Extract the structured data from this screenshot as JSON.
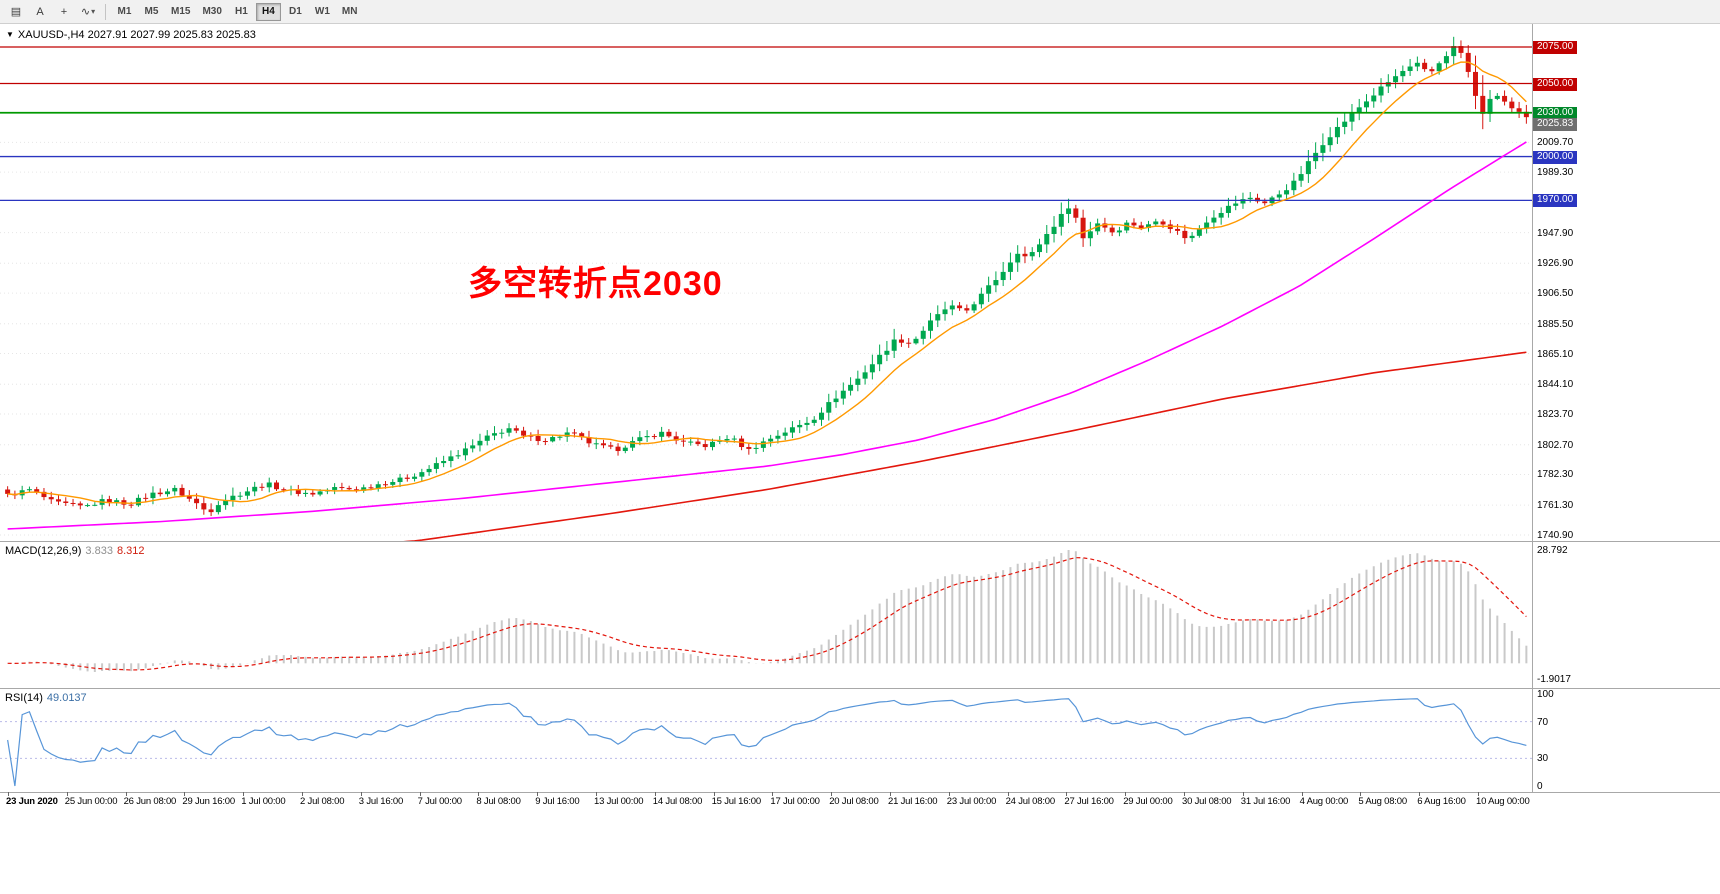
{
  "toolbar": {
    "tools": [
      {
        "name": "charts-list",
        "glyph": "▤",
        "caret": false
      },
      {
        "name": "text-label-tool",
        "glyph": "A",
        "caret": false
      },
      {
        "name": "crosshair-tool",
        "glyph": "+",
        "caret": false
      },
      {
        "name": "drawing-tool",
        "glyph": "∿",
        "caret": true
      }
    ],
    "timeframes": [
      "M1",
      "M5",
      "M15",
      "M30",
      "H1",
      "H4",
      "D1",
      "W1",
      "MN"
    ],
    "active_timeframe": "H4"
  },
  "quote_bar": {
    "dropdown_glyph": "▼",
    "text": "XAUUSD-,H4  2027.91 2027.99 2025.83 2025.83"
  },
  "annotation": {
    "text": "多空转折点2030",
    "color": "#ff0000"
  },
  "macd_label": {
    "name": "MACD(12,26,9)",
    "main": "3.833",
    "signal": "8.312"
  },
  "rsi_label": {
    "name": "RSI(14)",
    "value": "49.0137"
  },
  "chart_data": {
    "type": "candlestick",
    "symbol": "XAUUSD-",
    "timeframe": "H4",
    "title": "XAUUSD- H4 with MACD(12,26,9) and RSI(14)",
    "ohlc_readout": {
      "open": 2027.91,
      "high": 2027.99,
      "low": 2025.83,
      "close": 2025.83
    },
    "bars": 210,
    "up_color": "#00a84f",
    "down_color": "#d6150f",
    "y_axis": {
      "plain_labels": [
        "2009.70",
        "1989.30",
        "1947.90",
        "1926.90",
        "1906.50",
        "1885.50",
        "1865.10",
        "1844.10",
        "1823.70",
        "1802.70",
        "1782.30",
        "1761.30",
        "1740.90"
      ]
    },
    "price_tags": [
      {
        "price": 2075.0,
        "label": "2075.00",
        "bg": "#c00000"
      },
      {
        "price": 2050.0,
        "label": "2050.00",
        "bg": "#c00000"
      },
      {
        "price": 2030.0,
        "label": "2030.00",
        "bg": "#00882a"
      },
      {
        "price": 2025.83,
        "label": "2025.83",
        "bg": "#6f6f6f"
      },
      {
        "price": 2000.0,
        "label": "2000.00",
        "bg": "#2a35c0"
      },
      {
        "price": 1970.0,
        "label": "1970.00",
        "bg": "#2a35c0"
      }
    ],
    "horizontal_lines": [
      {
        "price": 2075.0,
        "color": "#c00000",
        "width": 1.2
      },
      {
        "price": 2050.0,
        "color": "#c00000",
        "width": 1.2
      },
      {
        "price": 2030.0,
        "color": "#009900",
        "width": 1.8
      },
      {
        "price": 2000.0,
        "color": "#2a35c0",
        "width": 1.3
      },
      {
        "price": 1970.0,
        "color": "#2a35c0",
        "width": 1.3
      }
    ],
    "close_keyframes": [
      [
        0.0,
        1768
      ],
      [
        0.015,
        1772
      ],
      [
        0.03,
        1763
      ],
      [
        0.05,
        1760
      ],
      [
        0.065,
        1765
      ],
      [
        0.08,
        1762
      ],
      [
        0.095,
        1769
      ],
      [
        0.11,
        1772
      ],
      [
        0.125,
        1762
      ],
      [
        0.132,
        1756
      ],
      [
        0.14,
        1764
      ],
      [
        0.155,
        1770
      ],
      [
        0.17,
        1776
      ],
      [
        0.185,
        1771
      ],
      [
        0.2,
        1769
      ],
      [
        0.215,
        1773
      ],
      [
        0.23,
        1772
      ],
      [
        0.245,
        1776
      ],
      [
        0.26,
        1779
      ],
      [
        0.275,
        1785
      ],
      [
        0.29,
        1793
      ],
      [
        0.305,
        1801
      ],
      [
        0.318,
        1809
      ],
      [
        0.33,
        1814
      ],
      [
        0.34,
        1808
      ],
      [
        0.355,
        1806
      ],
      [
        0.37,
        1811
      ],
      [
        0.385,
        1803
      ],
      [
        0.4,
        1799
      ],
      [
        0.415,
        1806
      ],
      [
        0.43,
        1811
      ],
      [
        0.445,
        1804
      ],
      [
        0.46,
        1802
      ],
      [
        0.475,
        1808
      ],
      [
        0.488,
        1799
      ],
      [
        0.5,
        1806
      ],
      [
        0.515,
        1813
      ],
      [
        0.53,
        1820
      ],
      [
        0.545,
        1835
      ],
      [
        0.56,
        1848
      ],
      [
        0.572,
        1861
      ],
      [
        0.585,
        1875
      ],
      [
        0.595,
        1872
      ],
      [
        0.608,
        1887
      ],
      [
        0.62,
        1898
      ],
      [
        0.63,
        1893
      ],
      [
        0.642,
        1906
      ],
      [
        0.655,
        1921
      ],
      [
        0.665,
        1935
      ],
      [
        0.672,
        1930
      ],
      [
        0.682,
        1944
      ],
      [
        0.692,
        1957
      ],
      [
        0.7,
        1968
      ],
      [
        0.708,
        1944
      ],
      [
        0.718,
        1955
      ],
      [
        0.728,
        1948
      ],
      [
        0.738,
        1955
      ],
      [
        0.748,
        1951
      ],
      [
        0.758,
        1957
      ],
      [
        0.768,
        1950
      ],
      [
        0.778,
        1943
      ],
      [
        0.788,
        1955
      ],
      [
        0.798,
        1962
      ],
      [
        0.808,
        1968
      ],
      [
        0.818,
        1972
      ],
      [
        0.828,
        1968
      ],
      [
        0.838,
        1975
      ],
      [
        0.848,
        1983
      ],
      [
        0.858,
        1998
      ],
      [
        0.868,
        2012
      ],
      [
        0.878,
        2022
      ],
      [
        0.888,
        2032
      ],
      [
        0.898,
        2041
      ],
      [
        0.908,
        2050
      ],
      [
        0.918,
        2058
      ],
      [
        0.928,
        2063
      ],
      [
        0.936,
        2056
      ],
      [
        0.944,
        2066
      ],
      [
        0.952,
        2075
      ],
      [
        0.958,
        2070
      ],
      [
        0.964,
        2050
      ],
      [
        0.97,
        2028
      ],
      [
        0.976,
        2038
      ],
      [
        0.982,
        2043
      ],
      [
        0.988,
        2034
      ],
      [
        0.994,
        2030
      ],
      [
        1.0,
        2026
      ]
    ],
    "moving_averages": [
      {
        "name": "fast-ma",
        "color": "#ff9900",
        "type": "sma",
        "period": 9
      },
      {
        "name": "mid-ma",
        "color": "#ff00ff",
        "keyframes": [
          [
            0,
            1745
          ],
          [
            0.1,
            1750
          ],
          [
            0.2,
            1757
          ],
          [
            0.3,
            1766
          ],
          [
            0.4,
            1777
          ],
          [
            0.5,
            1788
          ],
          [
            0.55,
            1796
          ],
          [
            0.6,
            1806
          ],
          [
            0.65,
            1820
          ],
          [
            0.7,
            1838
          ],
          [
            0.75,
            1860
          ],
          [
            0.8,
            1884
          ],
          [
            0.85,
            1911
          ],
          [
            0.9,
            1944
          ],
          [
            0.95,
            1978
          ],
          [
            1,
            2010
          ]
        ]
      },
      {
        "name": "slow-ma",
        "color": "#e3170d",
        "keyframes": [
          [
            0,
            1720
          ],
          [
            0.15,
            1727
          ],
          [
            0.27,
            1737
          ],
          [
            0.4,
            1756
          ],
          [
            0.5,
            1772
          ],
          [
            0.6,
            1791
          ],
          [
            0.7,
            1812
          ],
          [
            0.8,
            1834
          ],
          [
            0.9,
            1852
          ],
          [
            1,
            1866
          ]
        ]
      }
    ],
    "macd": {
      "params": "12,26,9",
      "main": 3.833,
      "signal": 8.312,
      "scale_labels": {
        "top": "28.792",
        "bottom": "-1.9017"
      },
      "histogram_color": "#c9c9c9",
      "signal_color": "#e3170d"
    },
    "rsi": {
      "period": 14,
      "value": 49.0137,
      "levels": [
        "100",
        "70",
        "30",
        "0"
      ],
      "line_color": "#5795d8",
      "level_line_color": "#b9b9e8"
    },
    "x_axis_labels": [
      "23 Jun 2020",
      "25 Jun 00:00",
      "26 Jun 08:00",
      "29 Jun 16:00",
      "1 Jul 00:00",
      "2 Jul 08:00",
      "3 Jul 16:00",
      "7 Jul 00:00",
      "8 Jul 08:00",
      "9 Jul 16:00",
      "13 Jul 00:00",
      "14 Jul 08:00",
      "15 Jul 16:00",
      "17 Jul 00:00",
      "20 Jul 08:00",
      "21 Jul 16:00",
      "23 Jul 00:00",
      "24 Jul 08:00",
      "27 Jul 16:00",
      "29 Jul 00:00",
      "30 Jul 08:00",
      "31 Jul 16:00",
      "4 Aug 00:00",
      "5 Aug 08:00",
      "6 Aug 16:00",
      "10 Aug 00:00"
    ]
  }
}
